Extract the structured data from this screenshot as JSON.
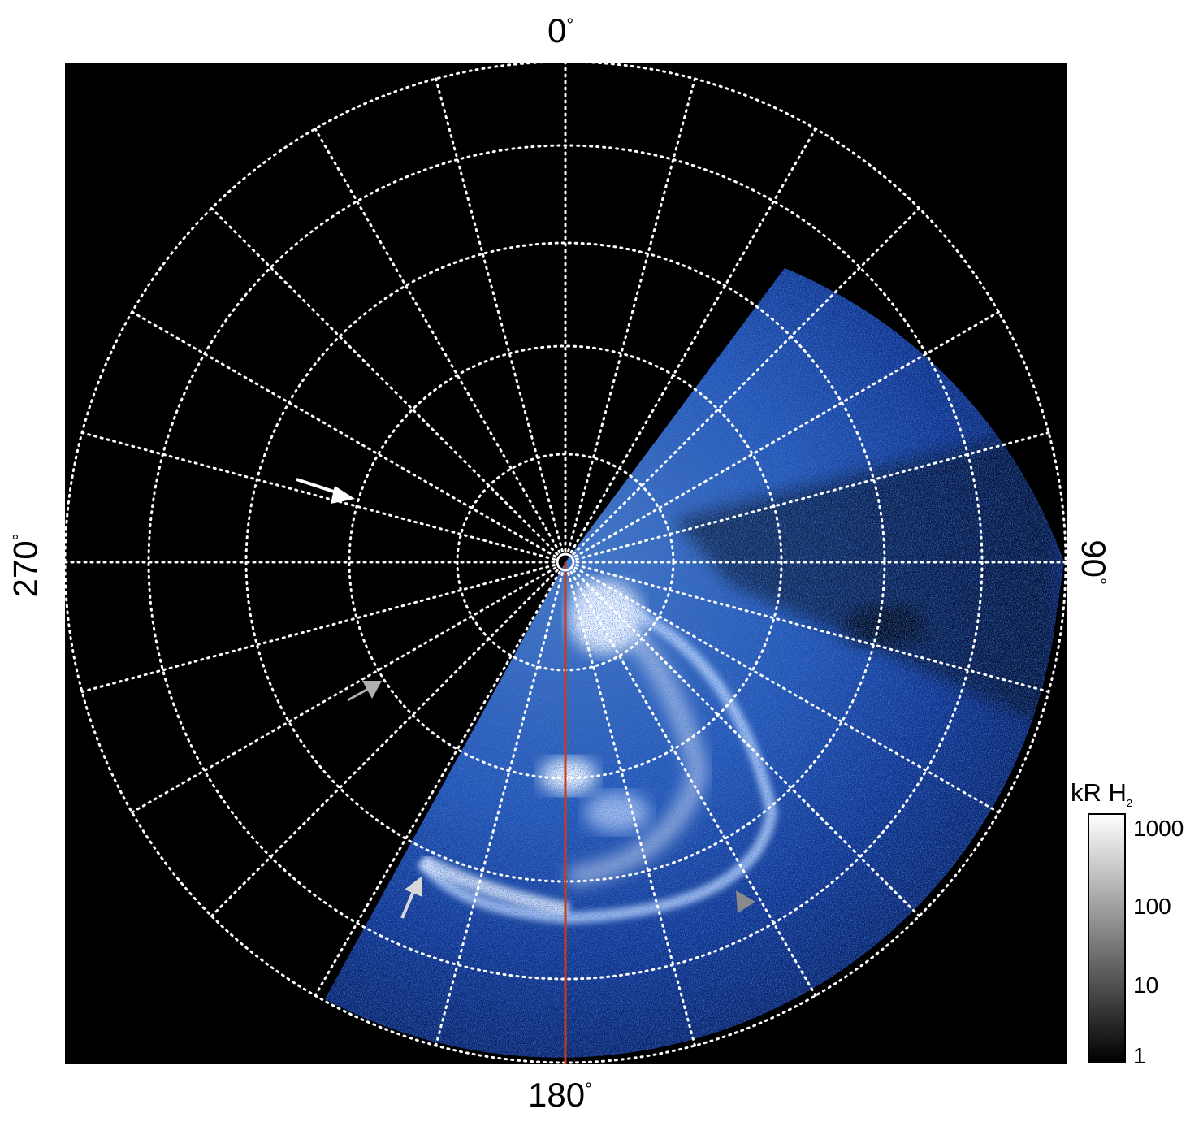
{
  "figure": {
    "angle_labels": {
      "top": "0",
      "right": "90",
      "bottom": "180",
      "left": "270",
      "degree_symbol": "°"
    },
    "colorbar": {
      "title": "kR H",
      "title_subscript": "2",
      "scale": "log",
      "range": [
        1,
        1000
      ],
      "ticks": [
        "1000",
        "100",
        "10",
        "1"
      ],
      "colormap": "grayscale"
    },
    "colors": {
      "background": "#000000",
      "grid": "#ffffff",
      "emission": "#2a6cf0",
      "bright_emission": "#ffffff",
      "reference_line": "#d03a12"
    },
    "arrows": [
      {
        "color": "#ffffff"
      },
      {
        "color": "#b0b0b0"
      },
      {
        "color": "#d8d8d8"
      },
      {
        "color": "#8a8a8a"
      }
    ]
  }
}
